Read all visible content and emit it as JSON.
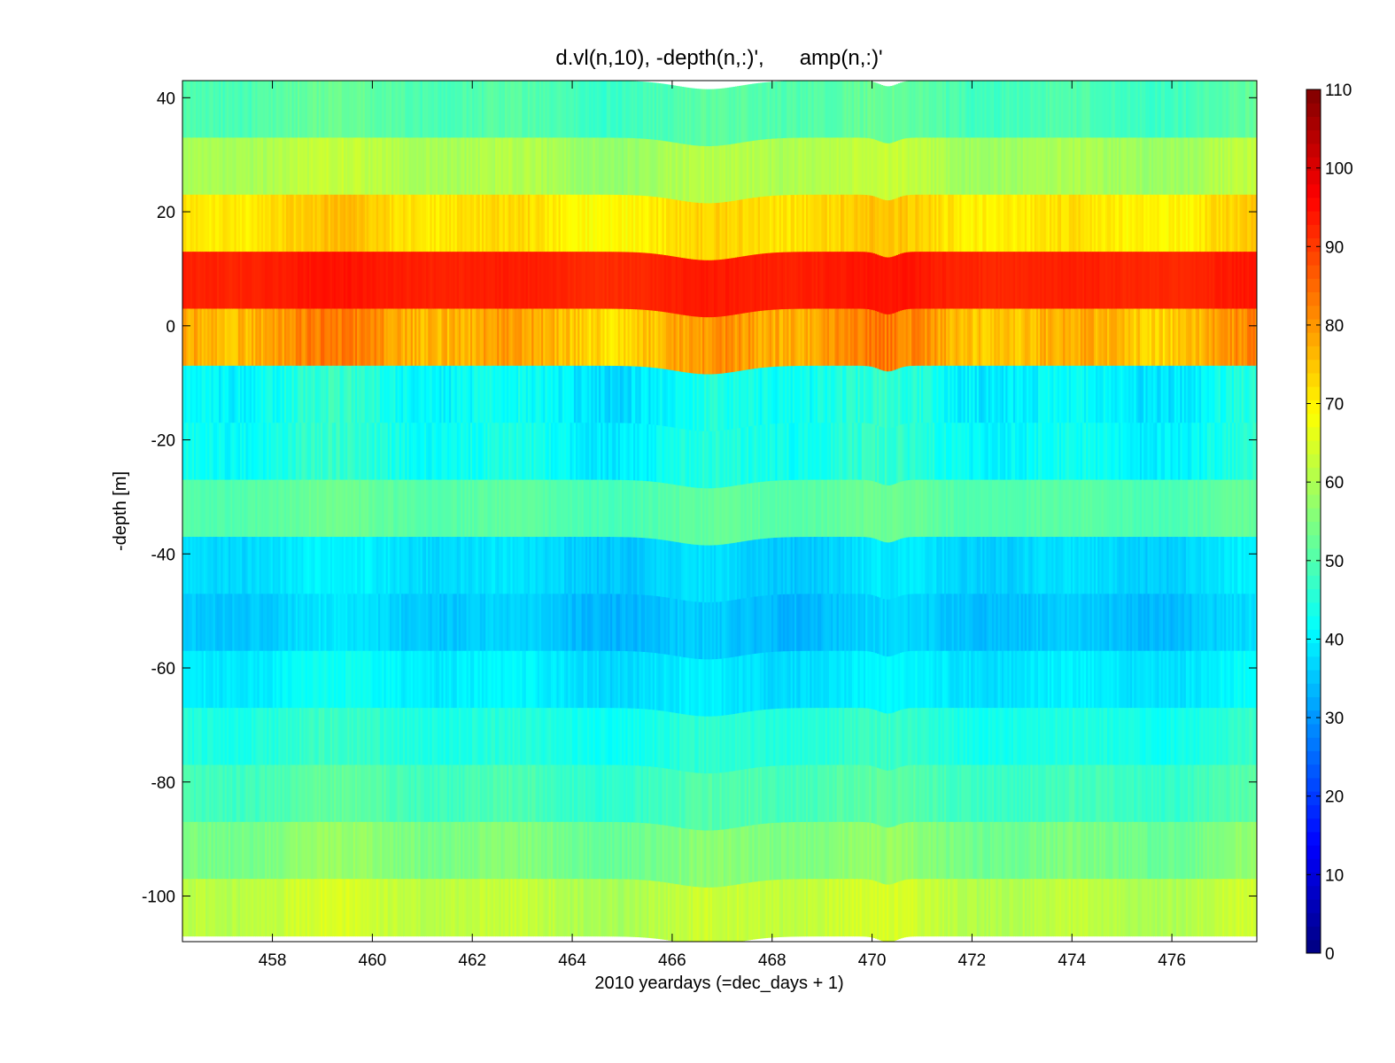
{
  "chart_data": {
    "type": "heatmap",
    "title": "d.vl(n,10), -depth(n,:)',      amp(n,:)'",
    "xlabel": "2010 yeardays (=dec_days + 1)",
    "ylabel": "-depth [m]",
    "xlim": [
      456.2,
      477.7
    ],
    "ylim": [
      -108,
      43
    ],
    "xticks": [
      458,
      460,
      462,
      464,
      466,
      468,
      470,
      472,
      474,
      476
    ],
    "yticks": [
      40,
      20,
      0,
      -20,
      -40,
      -60,
      -80,
      -100
    ],
    "colorbar": {
      "colormap": "jet",
      "clim": [
        0,
        110
      ],
      "ticks": [
        0,
        10,
        20,
        30,
        40,
        50,
        60,
        70,
        80,
        90,
        100,
        110
      ]
    },
    "bin_size_m": 10,
    "bins": [
      {
        "top": 43,
        "bottom": 33,
        "amp_mean": 50,
        "amp_var": 2
      },
      {
        "top": 33,
        "bottom": 23,
        "amp_mean": 60,
        "amp_var": 2
      },
      {
        "top": 23,
        "bottom": 13,
        "amp_mean": 72,
        "amp_var": 2.5
      },
      {
        "top": 13,
        "bottom": 3,
        "amp_mean": 93,
        "amp_var": 1
      },
      {
        "top": 3,
        "bottom": -7,
        "amp_mean": 78,
        "amp_var": 4
      },
      {
        "top": -7,
        "bottom": -17,
        "amp_mean": 42,
        "amp_var": 3.5
      },
      {
        "top": -17,
        "bottom": -27,
        "amp_mean": 43,
        "amp_var": 3
      },
      {
        "top": -27,
        "bottom": -37,
        "amp_mean": 51,
        "amp_var": 1.5
      },
      {
        "top": -37,
        "bottom": -47,
        "amp_mean": 38,
        "amp_var": 2
      },
      {
        "top": -47,
        "bottom": -57,
        "amp_mean": 36,
        "amp_var": 2
      },
      {
        "top": -57,
        "bottom": -67,
        "amp_mean": 40,
        "amp_var": 2
      },
      {
        "top": -67,
        "bottom": -77,
        "amp_mean": 45,
        "amp_var": 2
      },
      {
        "top": -77,
        "bottom": -87,
        "amp_mean": 49,
        "amp_var": 2
      },
      {
        "top": -87,
        "bottom": -97,
        "amp_mean": 55,
        "amp_var": 2
      },
      {
        "top": -97,
        "bottom": -107,
        "amp_mean": 62,
        "amp_var": 2
      }
    ]
  }
}
